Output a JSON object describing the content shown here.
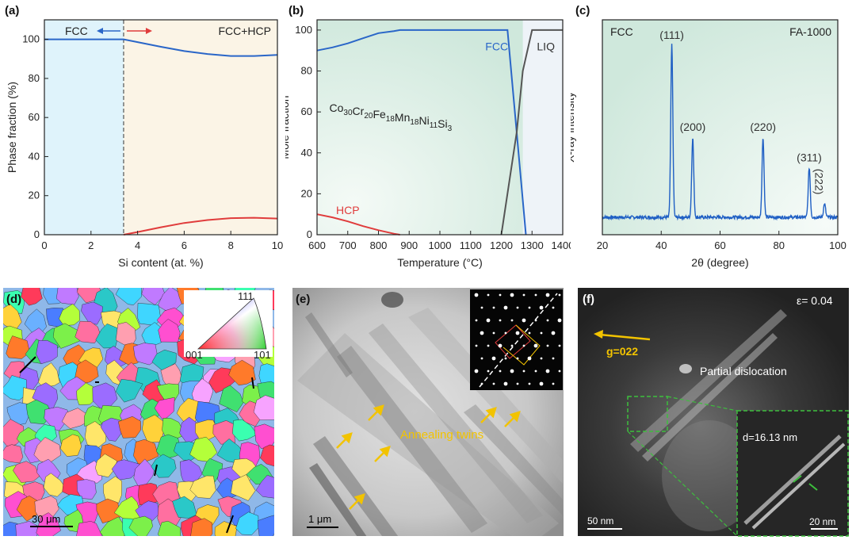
{
  "panels": {
    "a": {
      "label": "(a)"
    },
    "b": {
      "label": "(b)"
    },
    "c": {
      "label": "(c)"
    },
    "d": {
      "label": "(d)",
      "scale_bar": "30 μm",
      "ipf": {
        "top": "111",
        "left": "001",
        "right": "101"
      }
    },
    "e": {
      "label": "(e)",
      "annotation": "Annealing twins",
      "scale_bar": "1 μm"
    },
    "f": {
      "label": "(f)",
      "strain": "ε= 0.04",
      "gvector": "g=022",
      "annotation": "Partial dislocation",
      "spacing": "d=16.13 nm",
      "scale_bar": "50 nm",
      "inset_scale_bar": "20 nm"
    }
  },
  "colors": {
    "fcc_blue": "#2a66c8",
    "hcp_red": "#e03c3c",
    "liq_gray": "#555555",
    "xrd_blue": "#1f5fc4",
    "yellow": "#f2c300",
    "green": "#3dbf3d"
  },
  "chart_data": [
    {
      "type": "line",
      "xlabel": "Si content (at. %)",
      "ylabel": "Phase fraction (%)",
      "xlim": [
        0,
        10
      ],
      "ylim": [
        0,
        110
      ],
      "xticks": [
        "0",
        "2",
        "4",
        "6",
        "8",
        "10"
      ],
      "yticks": [
        "0",
        "20",
        "40",
        "60",
        "80",
        "100"
      ],
      "boundary_x": 3.4,
      "region_labels": [
        "FCC",
        "FCC+HCP"
      ],
      "series": [
        {
          "x": [
            0,
            3.4,
            4,
            5,
            6,
            7,
            8,
            9,
            10
          ],
          "values": [
            100,
            100,
            98.6,
            96.2,
            94.0,
            92.5,
            91.5,
            91.5,
            92.0
          ]
        },
        {
          "x": [
            3.4,
            4,
            5,
            6,
            7,
            8,
            9,
            10
          ],
          "values": [
            0,
            1.4,
            3.8,
            6.0,
            7.5,
            8.5,
            8.7,
            8.3
          ]
        }
      ]
    },
    {
      "type": "line",
      "xlabel": "Temperature (°C)",
      "ylabel": "Mole fraction",
      "xlim": [
        600,
        1400
      ],
      "ylim": [
        0,
        105
      ],
      "xticks": [
        "600",
        "700",
        "800",
        "900",
        "1000",
        "1100",
        "1200",
        "1300",
        "1400"
      ],
      "yticks": [
        "0",
        "20",
        "40",
        "60",
        "80",
        "100"
      ],
      "composition": {
        "base": "Co",
        "parts": [
          [
            "Co",
            "30"
          ],
          [
            "Cr",
            "20"
          ],
          [
            "Fe",
            "18"
          ],
          [
            "Mn",
            "18"
          ],
          [
            "Ni",
            "11"
          ],
          [
            "Si",
            "3"
          ]
        ]
      },
      "series": [
        {
          "name": "FCC",
          "x": [
            600,
            650,
            700,
            750,
            800,
            850,
            870,
            1000,
            1100,
            1220,
            1280
          ],
          "values": [
            90,
            91.5,
            93.5,
            96,
            98.5,
            99.5,
            100,
            100,
            100,
            100,
            0
          ]
        },
        {
          "name": "HCP",
          "x": [
            600,
            650,
            700,
            750,
            800,
            850,
            870
          ],
          "values": [
            10,
            8.5,
            6.5,
            4.2,
            2.2,
            0.5,
            0
          ]
        },
        {
          "name": "LIQ",
          "x": [
            1200,
            1225,
            1250,
            1270,
            1300,
            1400
          ],
          "values": [
            0,
            25,
            50,
            80,
            100,
            100
          ]
        }
      ]
    },
    {
      "type": "line",
      "xlabel": "2θ (degree)",
      "ylabel": "X-ray intensity",
      "xlim": [
        20,
        100
      ],
      "xticks": [
        "20",
        "40",
        "60",
        "80",
        "100"
      ],
      "phase_label": "FCC",
      "sample_label": "FA-1000",
      "peaks": [
        {
          "x": 43.6,
          "height": 0.9,
          "label": "(111)"
        },
        {
          "x": 50.7,
          "height": 0.42,
          "label": "(200)"
        },
        {
          "x": 74.6,
          "height": 0.42,
          "label": "(220)"
        },
        {
          "x": 90.3,
          "height": 0.26,
          "label": "(311)"
        },
        {
          "x": 95.5,
          "height": 0.07,
          "label": "(222)"
        }
      ]
    }
  ]
}
